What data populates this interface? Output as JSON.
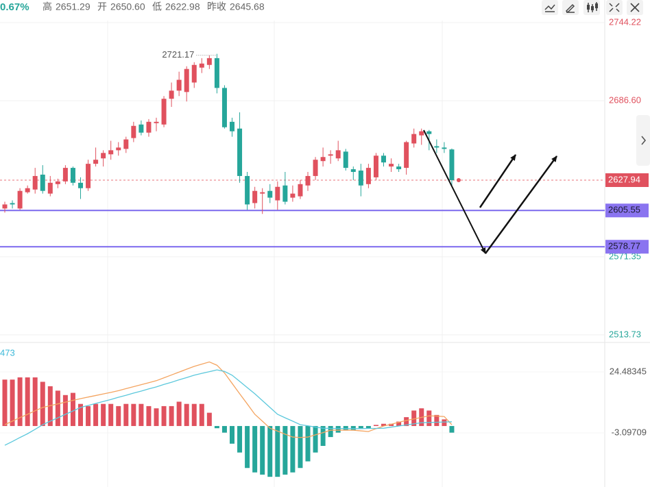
{
  "header": {
    "change": "0.67%",
    "high_label": "高",
    "high": "2651.29",
    "open_label": "开",
    "open": "2650.60",
    "low_label": "低",
    "low": "2622.98",
    "prev_close_label": "昨收",
    "prev_close": "2645.68"
  },
  "chart_data": [
    {
      "type": "candlestick",
      "up_color": "#e0515e",
      "down_color": "#26a69a",
      "open": [
        2607,
        2611,
        2607,
        2619,
        2621,
        2632,
        2618,
        2625,
        2627,
        2637,
        2626,
        2622,
        2640,
        2644,
        2647,
        2650,
        2651,
        2659,
        2669,
        2663,
        2670,
        2669,
        2688,
        2694,
        2693,
        2700,
        2711,
        2713,
        2718,
        2696,
        2671,
        2666,
        2631,
        2611,
        2618,
        2620,
        2613,
        2624,
        2615,
        2616,
        2624,
        2631,
        2642,
        2646,
        2644,
        2649,
        2636,
        2635,
        2625,
        2630,
        2646,
        2638,
        2638,
        2637,
        2655,
        2661,
        2664,
        2653,
        2652,
        2650.6
      ],
      "high": [
        2612,
        2613,
        2622,
        2624,
        2637,
        2639,
        2631,
        2629,
        2639,
        2638,
        2630,
        2643,
        2652,
        2650,
        2657,
        2656,
        2660,
        2671,
        2672,
        2673,
        2674,
        2690,
        2700,
        2708,
        2712,
        2715,
        2718,
        2720,
        2721.17,
        2698,
        2674,
        2678,
        2634,
        2623,
        2622,
        2625,
        2627,
        2634,
        2624,
        2628,
        2634,
        2645,
        2652,
        2650,
        2657,
        2651,
        2638,
        2640,
        2640,
        2648,
        2648,
        2644,
        2640,
        2657,
        2666,
        2666,
        2665,
        2658,
        2656,
        2651.29
      ],
      "low": [
        2604,
        2607,
        2606,
        2618,
        2618,
        2618,
        2616,
        2622,
        2625,
        2624,
        2614,
        2620,
        2638,
        2638,
        2643,
        2646,
        2648,
        2656,
        2661,
        2660,
        2664,
        2667,
        2682,
        2690,
        2686,
        2696,
        2707,
        2710,
        2692,
        2666,
        2660,
        2626,
        2606,
        2607,
        2603,
        2611,
        2606,
        2610,
        2612,
        2614,
        2620,
        2628,
        2638,
        2640,
        2642,
        2635,
        2628,
        2616,
        2622,
        2628,
        2638,
        2634,
        2634,
        2632,
        2652,
        2654,
        2650,
        2648,
        2648,
        2622.98
      ],
      "close": [
        2610,
        2610,
        2620,
        2622,
        2631,
        2620,
        2626,
        2627,
        2637,
        2626,
        2622,
        2640,
        2643,
        2648,
        2650,
        2652,
        2658,
        2668,
        2663,
        2671,
        2671,
        2688,
        2694,
        2702,
        2710,
        2713,
        2714,
        2718,
        2696,
        2667,
        2664,
        2631,
        2610,
        2620,
        2619,
        2615,
        2623,
        2612,
        2618,
        2625,
        2631,
        2643,
        2645,
        2647,
        2650,
        2637,
        2634,
        2624,
        2637,
        2646,
        2641,
        2640,
        2636,
        2656,
        2662,
        2664,
        2662,
        2652,
        2651,
        2627.94
      ],
      "ylim": [
        2508.1,
        2745.75
      ],
      "yticks": [
        2744.22,
        {
          "value": 2686.6,
          "label": "2686.60"
        },
        2571.35,
        2513.73
      ],
      "ytick_colors": [
        "#e0515e",
        "#e0515e",
        "#26a69a",
        "#26a69a"
      ],
      "grid": true,
      "max_label": 2721.17,
      "price_lines": [
        {
          "value": 2627.94,
          "color": "#e8707a",
          "dashed": true,
          "label_fill": "#e0515e",
          "label_color": "#ffffff"
        },
        {
          "value": 2605.55,
          "color": "#7b68ee",
          "dashed": false,
          "label_fill": "#8a74f0",
          "label_color": "#1a1a2e"
        },
        {
          "value": 2578.77,
          "color": "#7b68ee",
          "dashed": false,
          "label_fill": "#8a74f0",
          "label_color": "#1a1a2e"
        }
      ]
    },
    {
      "type": "macd",
      "label": "473",
      "label_color": "#3bb8d8",
      "ylim": [
        -27.6,
        37.8
      ],
      "yticks": [
        24.48345,
        -3.09709
      ],
      "series": [
        {
          "type": "bar",
          "up_color": "#e0515e",
          "down_color": "#26a69a",
          "values": [
            21,
            21,
            22,
            22,
            22,
            20,
            18,
            16,
            14,
            15,
            10,
            9,
            10,
            10,
            10,
            9,
            10,
            10,
            10,
            9,
            8,
            9,
            9,
            11,
            10,
            10,
            10,
            6,
            -1,
            -3,
            -8,
            -12,
            -19,
            -21,
            -22,
            -23,
            -23,
            -22,
            -21,
            -19,
            -16,
            -12,
            -9,
            -5,
            -3,
            -2,
            -2,
            -1,
            -1,
            0.5,
            1,
            1,
            2,
            4,
            7,
            8,
            7,
            5,
            3,
            -3
          ]
        },
        {
          "type": "line",
          "color": "#f4a460",
          "values": [
            0.6,
            2.2,
            3.8,
            5.3,
            6.9,
            8.4,
            9.2,
            10,
            10.8,
            11.6,
            12.4,
            13.1,
            13.8,
            14.5,
            15.2,
            16,
            16.9,
            17.8,
            18.7,
            19.6,
            20.5,
            21.8,
            23.1,
            24.4,
            25.7,
            27,
            28,
            29,
            27.5,
            24,
            19.3,
            14.6,
            10,
            5.3,
            2.2,
            -1,
            -2.3,
            -3.7,
            -5,
            -5.2,
            -5,
            -4,
            -3,
            -1.9,
            -1.9,
            -1.9,
            -1.9,
            -2.2,
            -2.5,
            -1.2,
            0,
            0.8,
            1.7,
            2.5,
            3.2,
            3.9,
            4.6,
            4.5,
            4.3,
            0.6
          ]
        },
        {
          "type": "line",
          "color": "#5bc8dc",
          "values": [
            -8.7,
            -7,
            -5.2,
            -3.5,
            -1.5,
            0.6,
            2.2,
            3.7,
            5.3,
            6.8,
            8.4,
            9.3,
            10.2,
            11.1,
            12,
            13,
            13.9,
            14.9,
            15.8,
            16.8,
            17.7,
            18.8,
            19.8,
            20.9,
            21.9,
            23,
            23.8,
            24.6,
            25.4,
            24.7,
            23,
            20.2,
            17.4,
            14.6,
            11.5,
            8.4,
            5.3,
            3.7,
            2.2,
            0.6,
            0.1,
            -0.5,
            -1,
            -1.1,
            -1.1,
            -1.2,
            -1.2,
            -1.2,
            -1.1,
            -1.1,
            -1,
            -0.5,
            0,
            0.5,
            1,
            1.5,
            1.6,
            1.7,
            1.8,
            1.9
          ]
        }
      ]
    }
  ]
}
